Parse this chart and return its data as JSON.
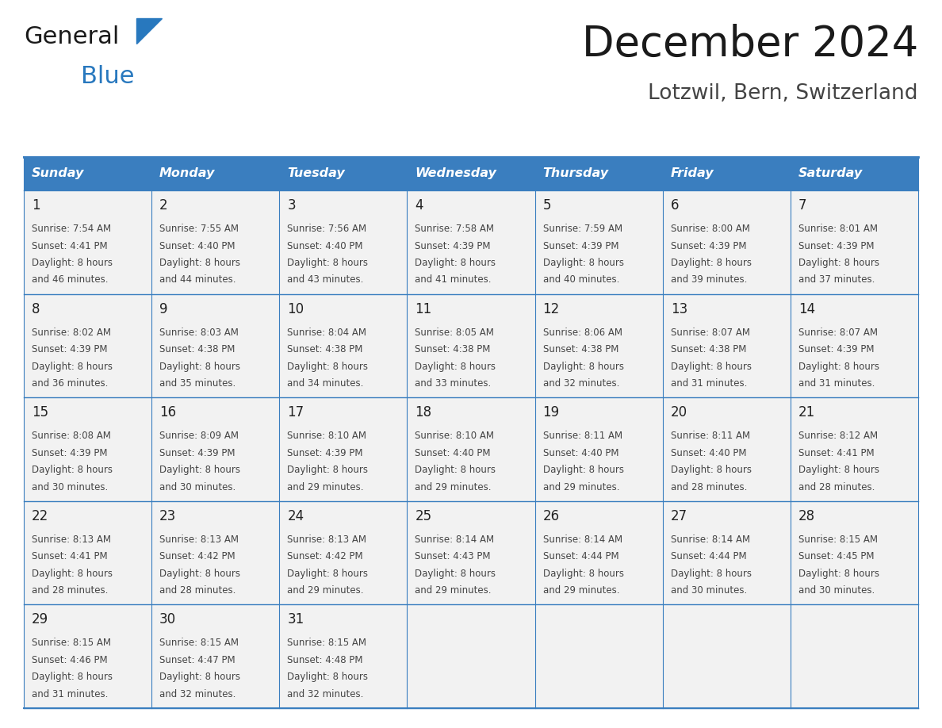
{
  "title": "December 2024",
  "subtitle": "Lotzwil, Bern, Switzerland",
  "days_of_week": [
    "Sunday",
    "Monday",
    "Tuesday",
    "Wednesday",
    "Thursday",
    "Friday",
    "Saturday"
  ],
  "header_bg": "#3a7ebf",
  "header_text": "#ffffff",
  "cell_bg": "#f2f2f2",
  "border_color": "#3a7ebf",
  "title_color": "#1a1a1a",
  "subtitle_color": "#444444",
  "day_number_color": "#222222",
  "cell_text_color": "#444444",
  "logo_general_color": "#1a1a1a",
  "logo_blue_color": "#2878be",
  "logo_triangle_color": "#2878be",
  "calendar_data": [
    [
      {
        "day": 1,
        "sunrise": "7:54 AM",
        "sunset": "4:41 PM",
        "daylight": "8 hours and 46 minutes."
      },
      {
        "day": 2,
        "sunrise": "7:55 AM",
        "sunset": "4:40 PM",
        "daylight": "8 hours and 44 minutes."
      },
      {
        "day": 3,
        "sunrise": "7:56 AM",
        "sunset": "4:40 PM",
        "daylight": "8 hours and 43 minutes."
      },
      {
        "day": 4,
        "sunrise": "7:58 AM",
        "sunset": "4:39 PM",
        "daylight": "8 hours and 41 minutes."
      },
      {
        "day": 5,
        "sunrise": "7:59 AM",
        "sunset": "4:39 PM",
        "daylight": "8 hours and 40 minutes."
      },
      {
        "day": 6,
        "sunrise": "8:00 AM",
        "sunset": "4:39 PM",
        "daylight": "8 hours and 39 minutes."
      },
      {
        "day": 7,
        "sunrise": "8:01 AM",
        "sunset": "4:39 PM",
        "daylight": "8 hours and 37 minutes."
      }
    ],
    [
      {
        "day": 8,
        "sunrise": "8:02 AM",
        "sunset": "4:39 PM",
        "daylight": "8 hours and 36 minutes."
      },
      {
        "day": 9,
        "sunrise": "8:03 AM",
        "sunset": "4:38 PM",
        "daylight": "8 hours and 35 minutes."
      },
      {
        "day": 10,
        "sunrise": "8:04 AM",
        "sunset": "4:38 PM",
        "daylight": "8 hours and 34 minutes."
      },
      {
        "day": 11,
        "sunrise": "8:05 AM",
        "sunset": "4:38 PM",
        "daylight": "8 hours and 33 minutes."
      },
      {
        "day": 12,
        "sunrise": "8:06 AM",
        "sunset": "4:38 PM",
        "daylight": "8 hours and 32 minutes."
      },
      {
        "day": 13,
        "sunrise": "8:07 AM",
        "sunset": "4:38 PM",
        "daylight": "8 hours and 31 minutes."
      },
      {
        "day": 14,
        "sunrise": "8:07 AM",
        "sunset": "4:39 PM",
        "daylight": "8 hours and 31 minutes."
      }
    ],
    [
      {
        "day": 15,
        "sunrise": "8:08 AM",
        "sunset": "4:39 PM",
        "daylight": "8 hours and 30 minutes."
      },
      {
        "day": 16,
        "sunrise": "8:09 AM",
        "sunset": "4:39 PM",
        "daylight": "8 hours and 30 minutes."
      },
      {
        "day": 17,
        "sunrise": "8:10 AM",
        "sunset": "4:39 PM",
        "daylight": "8 hours and 29 minutes."
      },
      {
        "day": 18,
        "sunrise": "8:10 AM",
        "sunset": "4:40 PM",
        "daylight": "8 hours and 29 minutes."
      },
      {
        "day": 19,
        "sunrise": "8:11 AM",
        "sunset": "4:40 PM",
        "daylight": "8 hours and 29 minutes."
      },
      {
        "day": 20,
        "sunrise": "8:11 AM",
        "sunset": "4:40 PM",
        "daylight": "8 hours and 28 minutes."
      },
      {
        "day": 21,
        "sunrise": "8:12 AM",
        "sunset": "4:41 PM",
        "daylight": "8 hours and 28 minutes."
      }
    ],
    [
      {
        "day": 22,
        "sunrise": "8:13 AM",
        "sunset": "4:41 PM",
        "daylight": "8 hours and 28 minutes."
      },
      {
        "day": 23,
        "sunrise": "8:13 AM",
        "sunset": "4:42 PM",
        "daylight": "8 hours and 28 minutes."
      },
      {
        "day": 24,
        "sunrise": "8:13 AM",
        "sunset": "4:42 PM",
        "daylight": "8 hours and 29 minutes."
      },
      {
        "day": 25,
        "sunrise": "8:14 AM",
        "sunset": "4:43 PM",
        "daylight": "8 hours and 29 minutes."
      },
      {
        "day": 26,
        "sunrise": "8:14 AM",
        "sunset": "4:44 PM",
        "daylight": "8 hours and 29 minutes."
      },
      {
        "day": 27,
        "sunrise": "8:14 AM",
        "sunset": "4:44 PM",
        "daylight": "8 hours and 30 minutes."
      },
      {
        "day": 28,
        "sunrise": "8:15 AM",
        "sunset": "4:45 PM",
        "daylight": "8 hours and 30 minutes."
      }
    ],
    [
      {
        "day": 29,
        "sunrise": "8:15 AM",
        "sunset": "4:46 PM",
        "daylight": "8 hours and 31 minutes."
      },
      {
        "day": 30,
        "sunrise": "8:15 AM",
        "sunset": "4:47 PM",
        "daylight": "8 hours and 32 minutes."
      },
      {
        "day": 31,
        "sunrise": "8:15 AM",
        "sunset": "4:48 PM",
        "daylight": "8 hours and 32 minutes."
      },
      null,
      null,
      null,
      null
    ]
  ]
}
